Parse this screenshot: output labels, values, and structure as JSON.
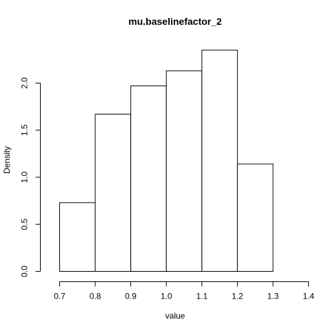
{
  "chart_data": {
    "type": "bar",
    "title": "mu.baselinefactor_2",
    "xlabel": "value",
    "ylabel": "Density",
    "bins": [
      {
        "from": 0.7,
        "to": 0.8,
        "density": 0.73
      },
      {
        "from": 0.8,
        "to": 0.9,
        "density": 1.67
      },
      {
        "from": 0.9,
        "to": 1.0,
        "density": 1.97
      },
      {
        "from": 1.0,
        "to": 1.1,
        "density": 2.13
      },
      {
        "from": 1.1,
        "to": 1.2,
        "density": 2.35
      },
      {
        "from": 1.2,
        "to": 1.3,
        "density": 1.14
      }
    ],
    "xlim": [
      0.7,
      1.4
    ],
    "ylim": [
      0.0,
      2.0
    ],
    "x_ticks": [
      {
        "value": 0.7,
        "label": "0.7"
      },
      {
        "value": 0.8,
        "label": "0.8"
      },
      {
        "value": 0.9,
        "label": "0.9"
      },
      {
        "value": 1.0,
        "label": "1.0"
      },
      {
        "value": 1.1,
        "label": "1.1"
      },
      {
        "value": 1.2,
        "label": "1.2"
      },
      {
        "value": 1.3,
        "label": "1.3"
      },
      {
        "value": 1.4,
        "label": "1.4"
      }
    ],
    "y_ticks": [
      {
        "value": 0.0,
        "label": "0.0"
      },
      {
        "value": 0.5,
        "label": "0.5"
      },
      {
        "value": 1.0,
        "label": "1.0"
      },
      {
        "value": 1.5,
        "label": "1.5"
      },
      {
        "value": 2.0,
        "label": "2.0"
      }
    ],
    "grid": false,
    "bar_fill": "#ffffff",
    "bar_stroke": "#000000"
  }
}
